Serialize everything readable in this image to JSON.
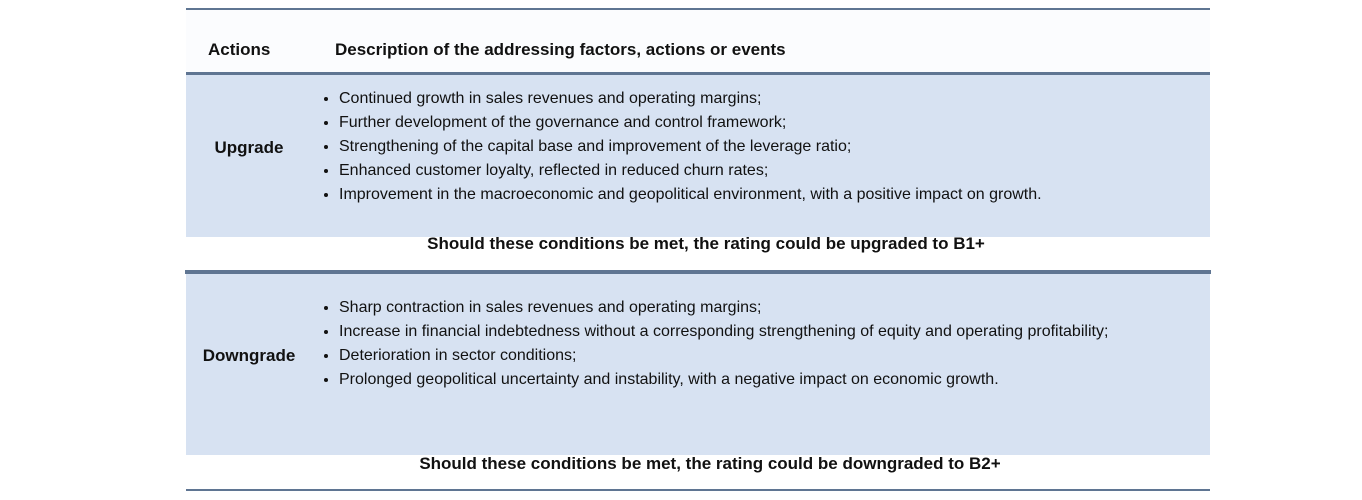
{
  "header": {
    "actions": "Actions",
    "description": "Description of the addressing factors, actions or events"
  },
  "upgrade": {
    "label": "Upgrade",
    "bullets": [
      "Continued growth in sales revenues and operating margins;",
      "Further development of the governance and control framework;",
      "Strengthening of the capital base and improvement of the leverage ratio;",
      "Enhanced customer loyalty, reflected in reduced churn rates;",
      "Improvement in the macroeconomic and geopolitical environment, with a positive impact on growth."
    ],
    "condition": "Should these conditions be met, the rating could be upgraded to B1+"
  },
  "downgrade": {
    "label": "Downgrade",
    "bullets": [
      "Sharp contraction in sales revenues and operating margins;",
      "Increase in financial indebtedness without a corresponding strengthening of equity and operating profitability;",
      "Deterioration in sector conditions;",
      "Prolonged geopolitical uncertainty and instability, with a negative impact on economic growth."
    ],
    "condition": "Should these conditions be met, the rating could be downgraded to B2+"
  },
  "colors": {
    "band": "#d7e2f2",
    "rule": "#5f7592",
    "header_bg": "#fbfcfe"
  }
}
